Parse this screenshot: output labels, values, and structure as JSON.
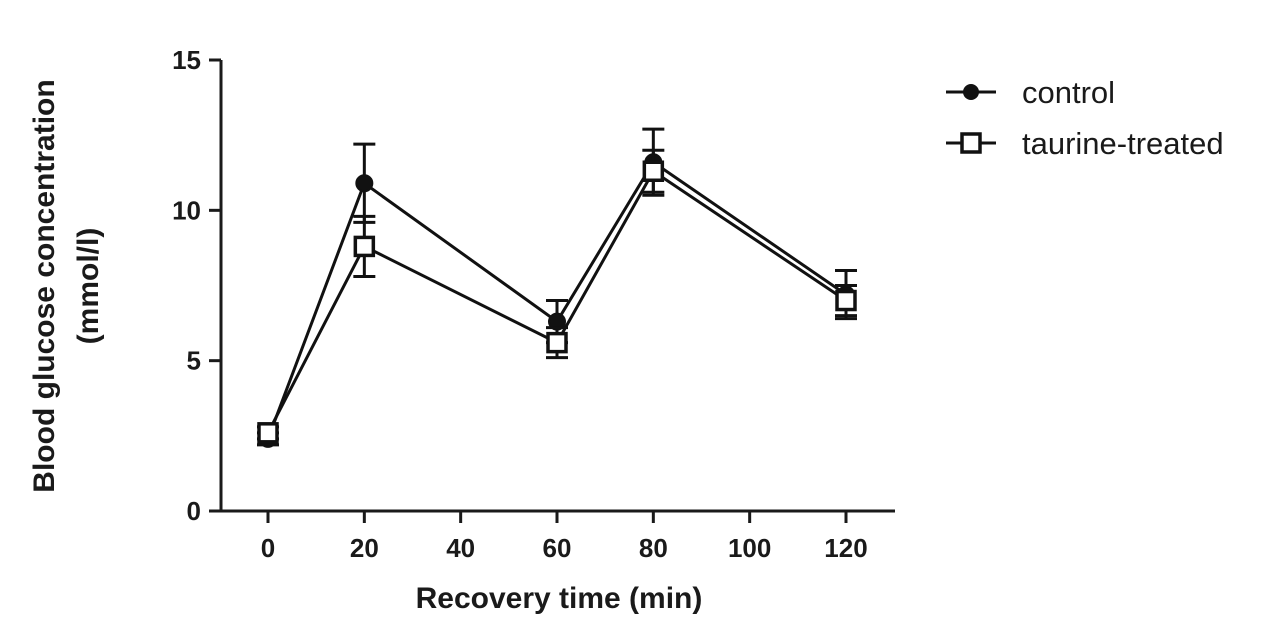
{
  "chart_data": {
    "type": "line",
    "title": "",
    "xlabel": "Recovery time (min)",
    "ylabel_line1": "Blood glucose concentration",
    "ylabel_line2": "(mmol/l)",
    "xlim": [
      -5,
      130
    ],
    "ylim": [
      0,
      15
    ],
    "xticks": [
      0,
      20,
      40,
      60,
      80,
      100,
      120
    ],
    "yticks": [
      0,
      5,
      10,
      15
    ],
    "grid": false,
    "legend_position": "top-right",
    "series": [
      {
        "name": "control",
        "marker": "filled-circle",
        "x": [
          0,
          20,
          60,
          80,
          120
        ],
        "y": [
          2.4,
          10.9,
          6.3,
          11.6,
          7.2
        ],
        "err": [
          0.2,
          1.3,
          0.7,
          1.1,
          0.8
        ],
        "color": "#111111"
      },
      {
        "name": "taurine-treated",
        "marker": "open-square",
        "x": [
          0,
          20,
          60,
          80,
          120
        ],
        "y": [
          2.6,
          8.8,
          5.6,
          11.3,
          7.0
        ],
        "err": [
          0.2,
          1.0,
          0.5,
          0.7,
          0.5
        ],
        "color": "#111111"
      }
    ]
  }
}
